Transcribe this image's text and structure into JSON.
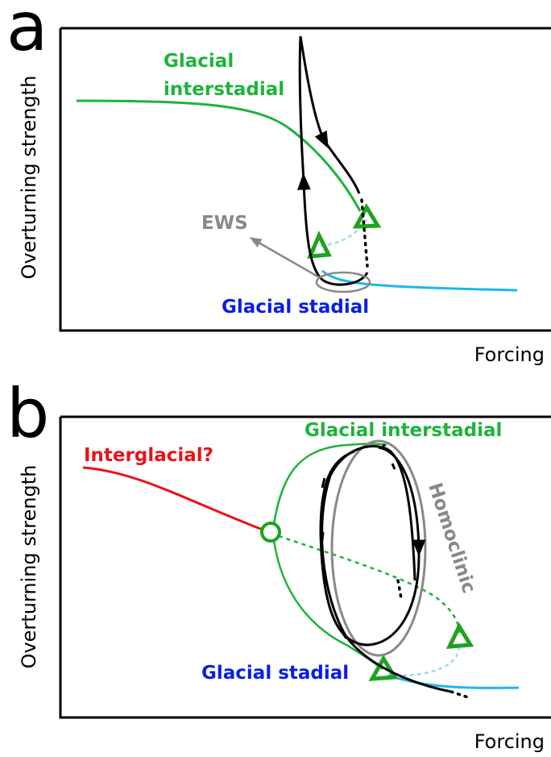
{
  "panels": [
    {
      "label": "a",
      "y_label": "Overturning strength",
      "x_label": "Forcing",
      "interstadial_lines": [
        "Glacial",
        "interstadial"
      ],
      "ews": "EWS",
      "stadial": "Glacial stadial"
    },
    {
      "label": "b",
      "y_label": "Overturning strength",
      "x_label": "Forcing",
      "interstadial": "Glacial interstadial",
      "interglacial": "Interglacial?",
      "homoclinic": "Homoclinic",
      "stadial": "Glacial stadial"
    }
  ]
}
